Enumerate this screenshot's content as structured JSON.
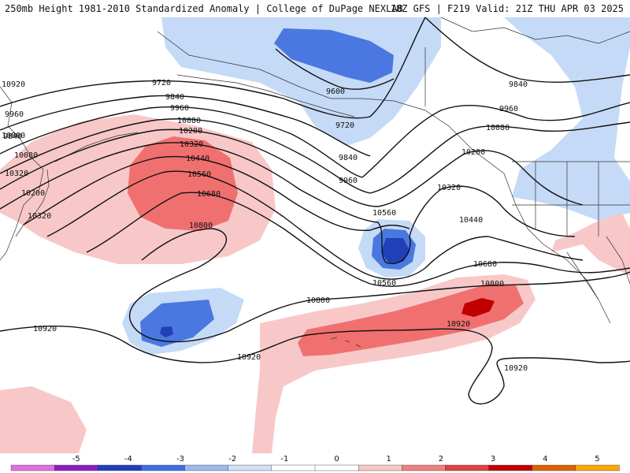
{
  "header": {
    "left": "250mb Height 1981-2010 Standardized Anomaly | College of DuPage NEXLAB",
    "right": "18Z GFS | F219 Valid: 21Z THU APR 03 2025"
  },
  "contour_labels": [
    "9720",
    "9840",
    "9960",
    "10080",
    "10200",
    "10320",
    "10440",
    "10560",
    "10680",
    "10800",
    "10920",
    "9600",
    "10920",
    "10800",
    "10680",
    "10560",
    "10440",
    "10320",
    "10200",
    "10080",
    "9960",
    "9840",
    "9720",
    "9840",
    "9960",
    "10080",
    "10200",
    "10320",
    "10800",
    "10920",
    "10920",
    "10920",
    "10800",
    "10560",
    "10320",
    "9960",
    "9840"
  ],
  "colorbar": {
    "ticks": [
      "-5",
      "-4",
      "-3",
      "-2",
      "-1",
      "0",
      "1",
      "2",
      "3",
      "4",
      "5"
    ],
    "colors": [
      "#e070e0",
      "#8a1fbf",
      "#1f3fbf",
      "#3f6fe6",
      "#9ab9ef",
      "#cfe0f8",
      "#ffffff",
      "#ffffff",
      "#f8c8c8",
      "#f08080",
      "#e04040",
      "#c00000",
      "#e06000",
      "#ffa500"
    ]
  },
  "anomaly_colors": {
    "light_blue": "#c5daf6",
    "mid_blue": "#4a78e0",
    "dark_blue": "#2040b8",
    "light_red": "#f8c8c8",
    "mid_red": "#f07070",
    "dark_red": "#c00000"
  }
}
